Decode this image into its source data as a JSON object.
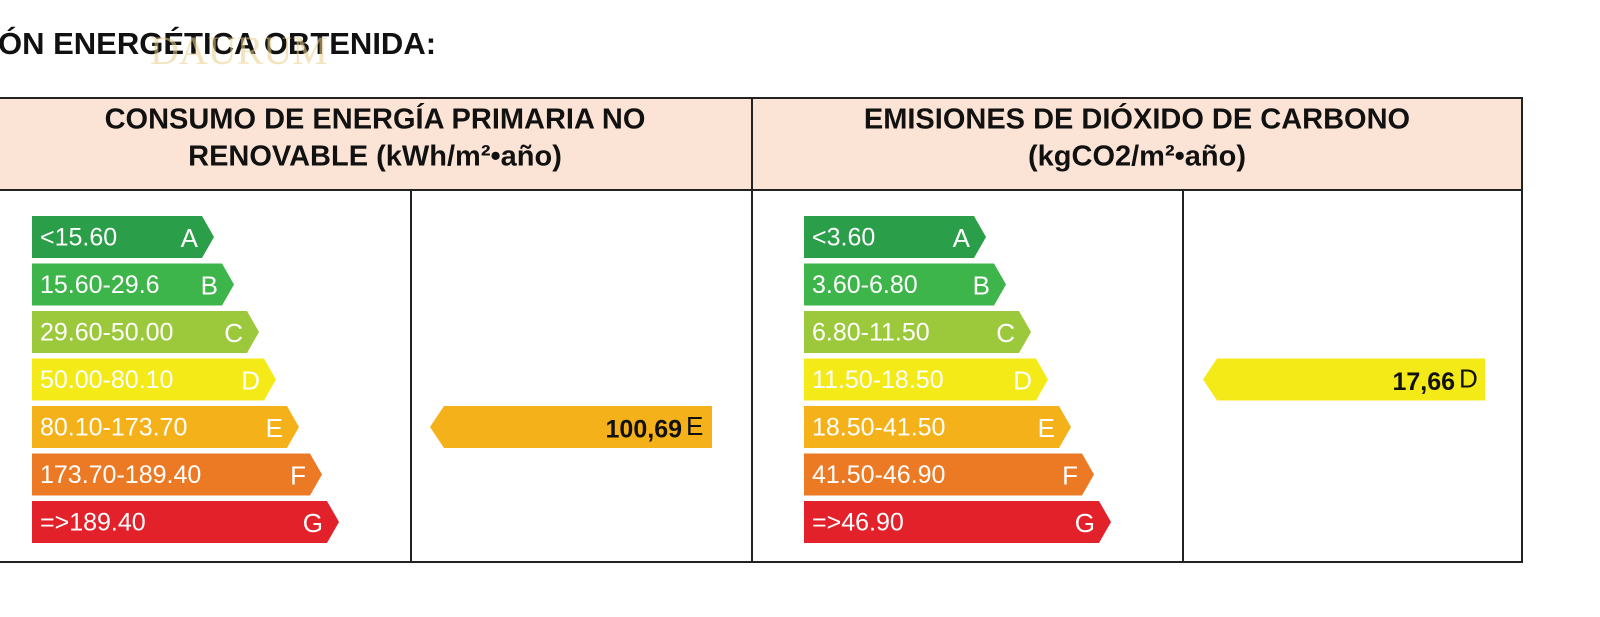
{
  "title": "ÓN ENERGÉTICA OBTENIDA:",
  "watermark": "DAURUM",
  "panels": [
    {
      "header": [
        "CONSUMO  DE ENERGÍA PRIMARIA NO",
        "RENOVABLE (kWh/m²•año)"
      ],
      "scale": [
        {
          "range": "<15.60",
          "letter": "A",
          "color": "#2a9e48"
        },
        {
          "range": "15.60-29.6",
          "letter": "B",
          "color": "#3db54a"
        },
        {
          "range": "29.60-50.00",
          "letter": "C",
          "color": "#9cc93b"
        },
        {
          "range": "50.00-80.10",
          "letter": "D",
          "color": "#f3ea17"
        },
        {
          "range": "80.10-173.70",
          "letter": "E",
          "color": "#f5b119"
        },
        {
          "range": "173.70-189.40",
          "letter": "F",
          "color": "#ec7a25"
        },
        {
          "range": "=>189.40",
          "letter": "G",
          "color": "#e2212b"
        }
      ],
      "result": {
        "value": "100,69",
        "letter": "E"
      }
    },
    {
      "header": [
        "EMISIONES DE DIÓXIDO DE CARBONO",
        "(kgCO2/m²•año)"
      ],
      "scale": [
        {
          "range": "<3.60",
          "letter": "A",
          "color": "#2a9e48"
        },
        {
          "range": "3.60-6.80",
          "letter": "B",
          "color": "#3db54a"
        },
        {
          "range": "6.80-11.50",
          "letter": "C",
          "color": "#9cc93b"
        },
        {
          "range": "11.50-18.50",
          "letter": "D",
          "color": "#f3ea17"
        },
        {
          "range": "18.50-41.50",
          "letter": "E",
          "color": "#f5b119"
        },
        {
          "range": "41.50-46.90",
          "letter": "F",
          "color": "#ec7a25"
        },
        {
          "range": "=>46.90",
          "letter": "G",
          "color": "#e2212b"
        }
      ],
      "result": {
        "value": "17,66",
        "letter": "D"
      }
    }
  ]
}
